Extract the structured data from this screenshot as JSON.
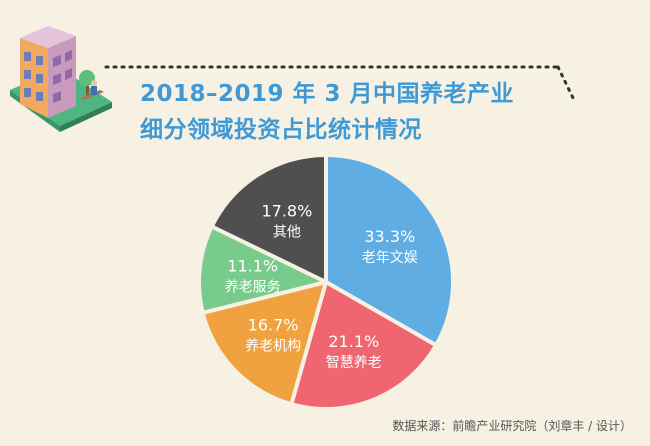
{
  "title_line1": "2018–2019 年 3 月中国养老产业",
  "title_line2": "细分领域投资占比统计情况",
  "source": "数据来源：前瞻产业研究院（刘章丰 / 设计）",
  "colors": {
    "background": "#f7f1e3",
    "title": "#3d9ad7",
    "slice_blue": "#5fade3",
    "slice_red": "#ef6570",
    "slice_orange": "#efa23f",
    "slice_green": "#79cb8b",
    "slice_gray": "#4f4f4f"
  },
  "chart_data": {
    "type": "pie",
    "title": "2018–2019 年 3 月中国养老产业细分领域投资占比统计情况",
    "unit": "%",
    "start": "12 o'clock",
    "direction": "clockwise",
    "slices": [
      {
        "label": "老年文娱",
        "value": 33.3,
        "display": "33.3%",
        "color": "#5fade3"
      },
      {
        "label": "智慧养老",
        "value": 21.1,
        "display": "21.1%",
        "color": "#ef6570"
      },
      {
        "label": "养老机构",
        "value": 16.7,
        "display": "16.7%",
        "color": "#efa23f"
      },
      {
        "label": "养老服务",
        "value": 11.1,
        "display": "11.1%",
        "color": "#79cb8b"
      },
      {
        "label": "其他",
        "value": 17.8,
        "display": "17.8%",
        "color": "#4f4f4f"
      }
    ]
  }
}
